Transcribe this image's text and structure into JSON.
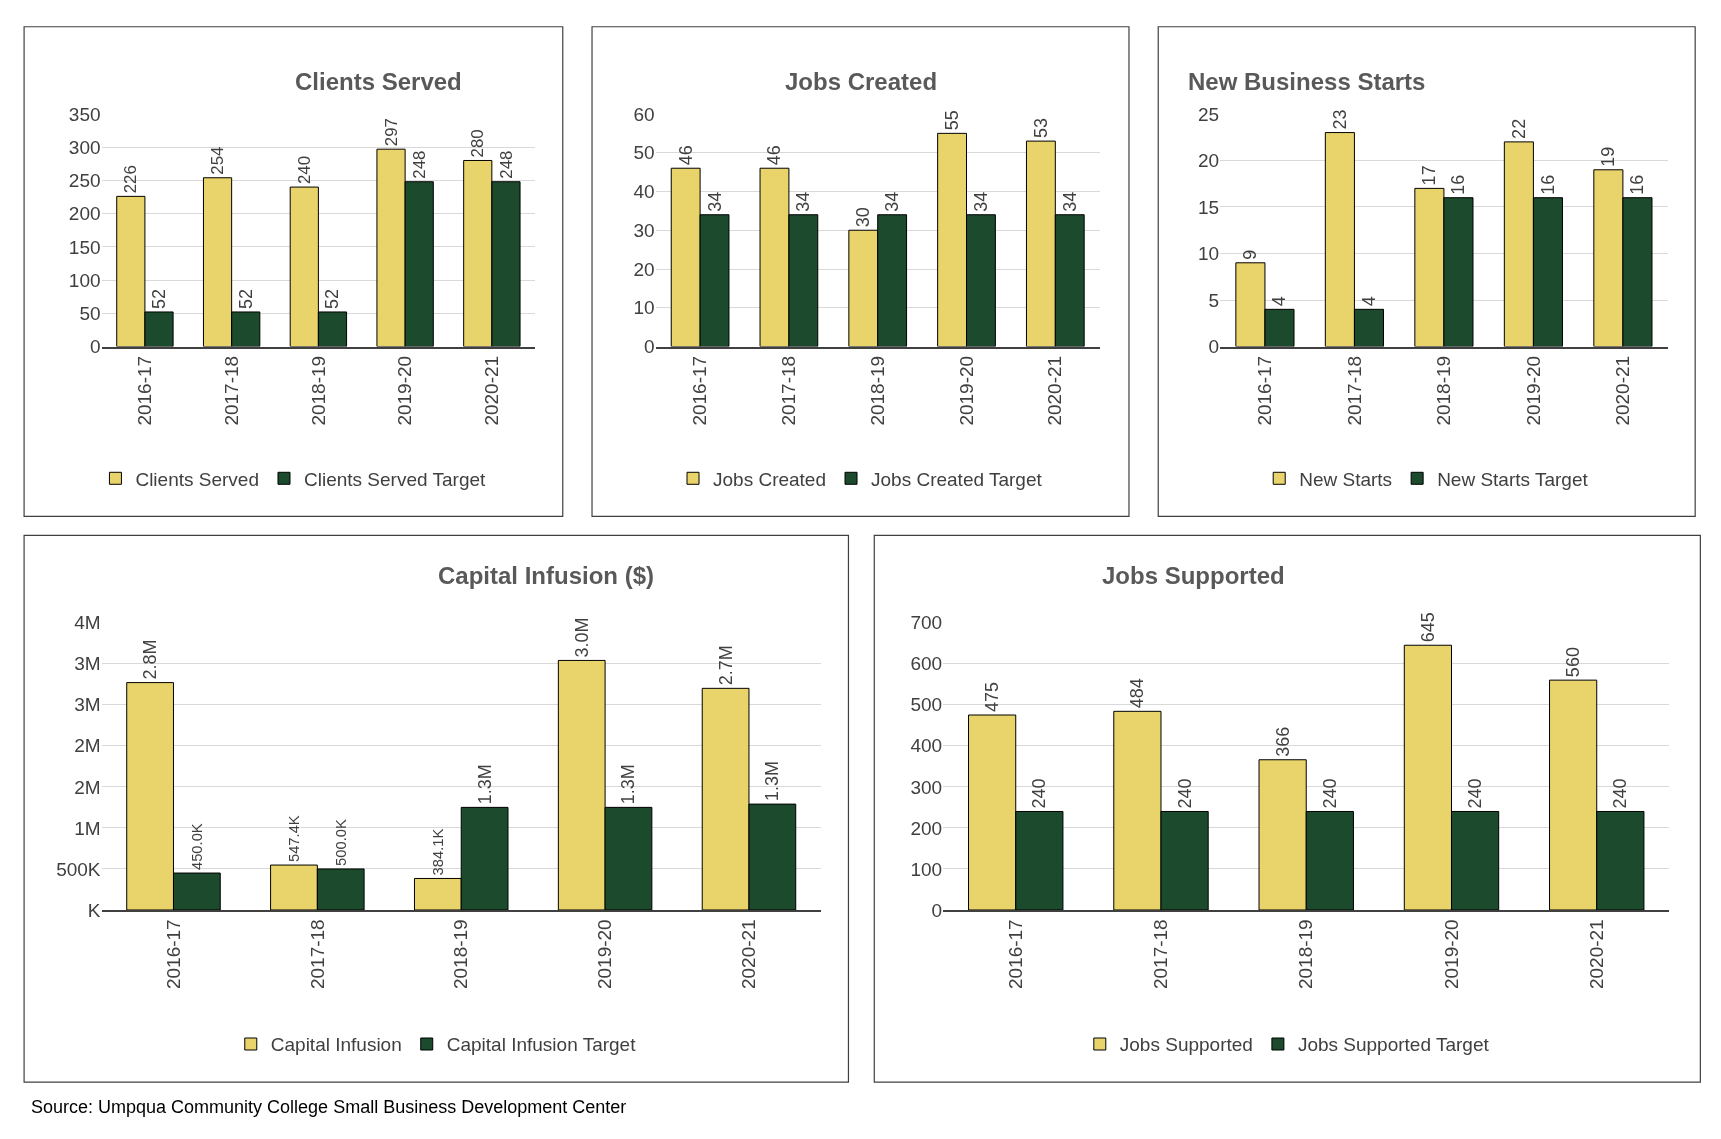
{
  "chart_data": [
    {
      "type": "bar",
      "title": "Clients Served",
      "categories": [
        "2016-17",
        "2017-18",
        "2018-19",
        "2019-20",
        "2020-21"
      ],
      "series": [
        {
          "name": "Clients Served",
          "color": "#e9d46b",
          "values": [
            226,
            254,
            240,
            297,
            280
          ]
        },
        {
          "name": "Clients Served Target",
          "color": "#1b4a2c",
          "values": [
            52,
            52,
            52,
            248,
            248
          ]
        }
      ],
      "ylim": [
        0,
        350
      ],
      "yticks": [
        0,
        50,
        100,
        150,
        200,
        250,
        300,
        350
      ],
      "grid": "y",
      "legend": "bottom",
      "data_labels": true
    },
    {
      "type": "bar",
      "title": "Jobs Created",
      "categories": [
        "2016-17",
        "2017-18",
        "2018-19",
        "2019-20",
        "2020-21"
      ],
      "series": [
        {
          "name": "Jobs Created",
          "color": "#e9d46b",
          "values": [
            46,
            46,
            30,
            55,
            53
          ]
        },
        {
          "name": "Jobs Created Target",
          "color": "#1b4a2c",
          "values": [
            34,
            34,
            34,
            34,
            34
          ]
        }
      ],
      "ylim": [
        0,
        60
      ],
      "yticks": [
        0,
        10,
        20,
        30,
        40,
        50,
        60
      ],
      "grid": "y",
      "legend": "bottom",
      "data_labels": true
    },
    {
      "type": "bar",
      "title": "New Business Starts",
      "categories": [
        "2016-17",
        "2017-18",
        "2018-19",
        "2019-20",
        "2020-21"
      ],
      "series": [
        {
          "name": "New Starts",
          "color": "#e9d46b",
          "values": [
            9,
            23,
            17,
            22,
            19
          ]
        },
        {
          "name": "New Starts Target",
          "color": "#1b4a2c",
          "values": [
            4,
            4,
            16,
            16,
            16
          ]
        }
      ],
      "ylim": [
        0,
        25
      ],
      "yticks": [
        0,
        5,
        10,
        15,
        20,
        25
      ],
      "grid": "y",
      "legend": "bottom",
      "data_labels": true
    },
    {
      "type": "bar",
      "title": "Capital Infusion ($)",
      "categories": [
        "2016-17",
        "2017-18",
        "2018-19",
        "2019-20",
        "2020-21"
      ],
      "series": [
        {
          "name": "Capital Infusion",
          "color": "#e9d46b",
          "values": [
            2770000,
            547400,
            384100,
            3040000,
            2700000
          ],
          "value_labels": [
            "2.8M",
            "547.4K",
            "384.1K",
            "3.0M",
            "2.7M"
          ]
        },
        {
          "name": "Capital Infusion Target",
          "color": "#1b4a2c",
          "values": [
            450000,
            500000,
            1250000,
            1250000,
            1290000
          ],
          "value_labels": [
            "450.0K",
            "500.0K",
            "1.3M",
            "1.3M",
            "1.3M"
          ]
        }
      ],
      "ylim": [
        0,
        3500000
      ],
      "yticks": [
        {
          "value": 0,
          "label": "K"
        },
        {
          "value": 500000,
          "label": "500K"
        },
        {
          "value": 1000000,
          "label": "1M"
        },
        {
          "value": 1500000,
          "label": "2M"
        },
        {
          "value": 2000000,
          "label": "2M"
        },
        {
          "value": 2500000,
          "label": "3M"
        },
        {
          "value": 3000000,
          "label": "3M"
        },
        {
          "value": 3500000,
          "label": "4M"
        }
      ],
      "grid": "y",
      "legend": "bottom",
      "annotations": [
        "Source: Umpqua Community College Small Business Development Center"
      ]
    },
    {
      "type": "bar",
      "title": "Jobs Supported",
      "categories": [
        "2016-17",
        "2017-18",
        "2018-19",
        "2019-20",
        "2020-21"
      ],
      "series": [
        {
          "name": "Jobs Supported",
          "color": "#e9d46b",
          "values": [
            475,
            484,
            366,
            645,
            560
          ]
        },
        {
          "name": "Jobs Supported Target",
          "color": "#1b4a2c",
          "values": [
            240,
            240,
            240,
            240,
            240
          ]
        }
      ],
      "ylim": [
        0,
        700
      ],
      "yticks": [
        0,
        100,
        200,
        300,
        400,
        500,
        600,
        700
      ],
      "grid": "y",
      "legend": "bottom",
      "data_labels": true
    }
  ]
}
